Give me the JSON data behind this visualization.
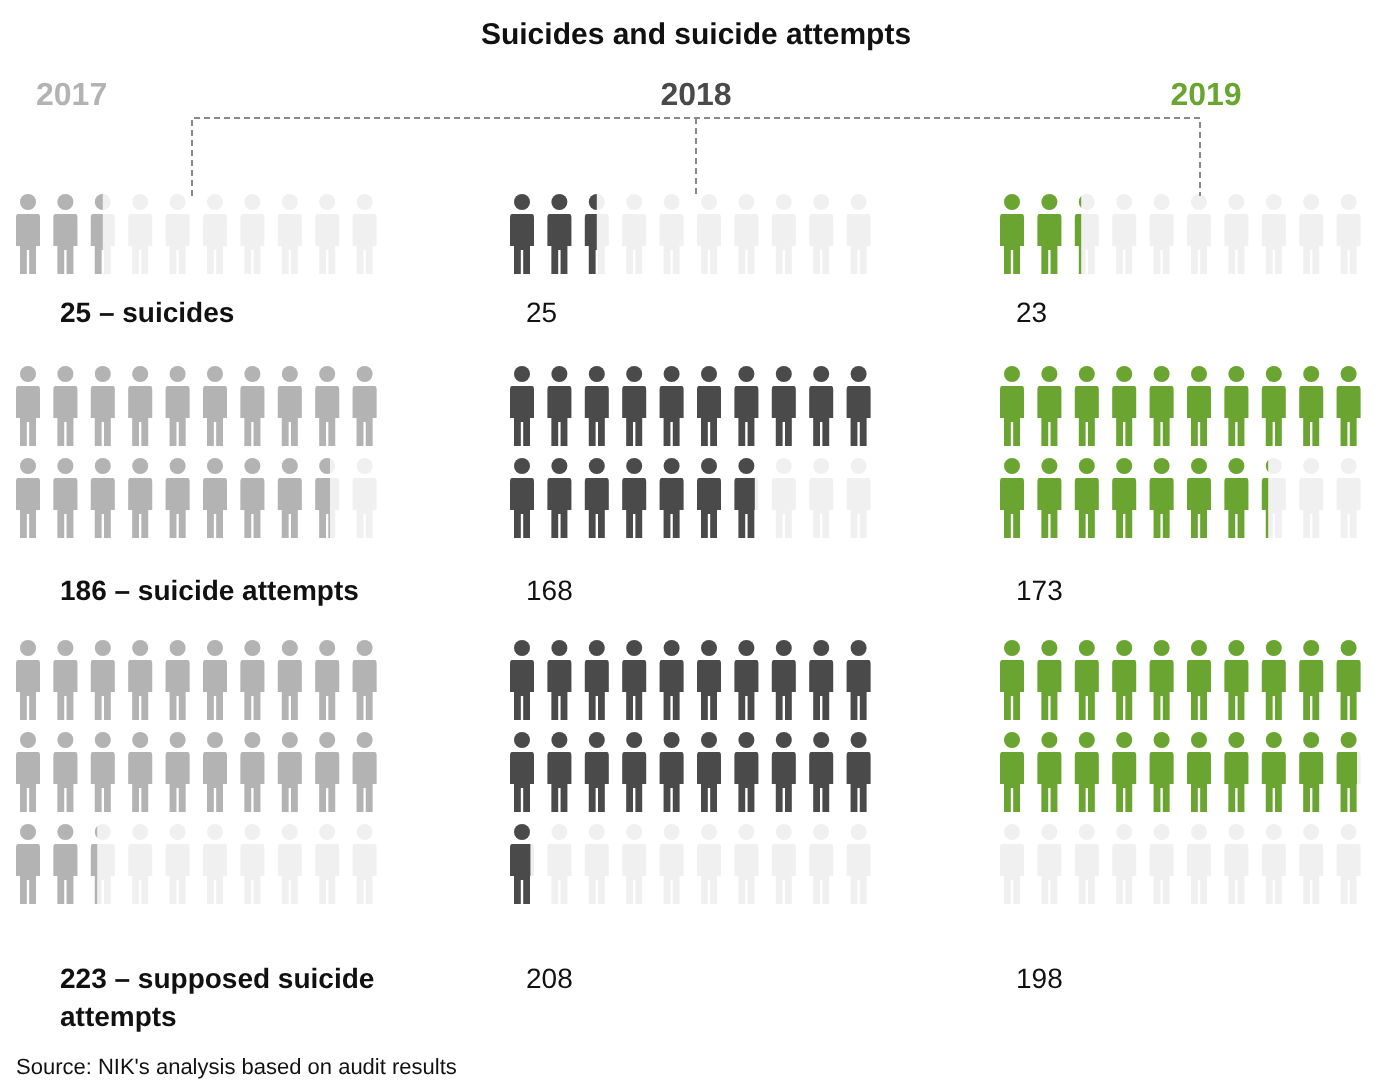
{
  "chart_data": {
    "type": "other",
    "title": "Suicides and suicide attempts",
    "categories": [
      "– suicides",
      "– suicide attempts",
      "– supposed suicide attempts"
    ],
    "series": [
      {
        "name": "2017",
        "color": "#b3b3b3",
        "values": [
          25,
          186,
          223
        ]
      },
      {
        "name": "2018",
        "color": "#4a4a4a",
        "values": [
          25,
          168,
          208
        ]
      },
      {
        "name": "2019",
        "color": "#6aa531",
        "values": [
          23,
          173,
          198
        ]
      }
    ],
    "data_labels": true,
    "legend": false,
    "annotations": [
      "Source: NIK's analysis based on audit results"
    ]
  }
}
